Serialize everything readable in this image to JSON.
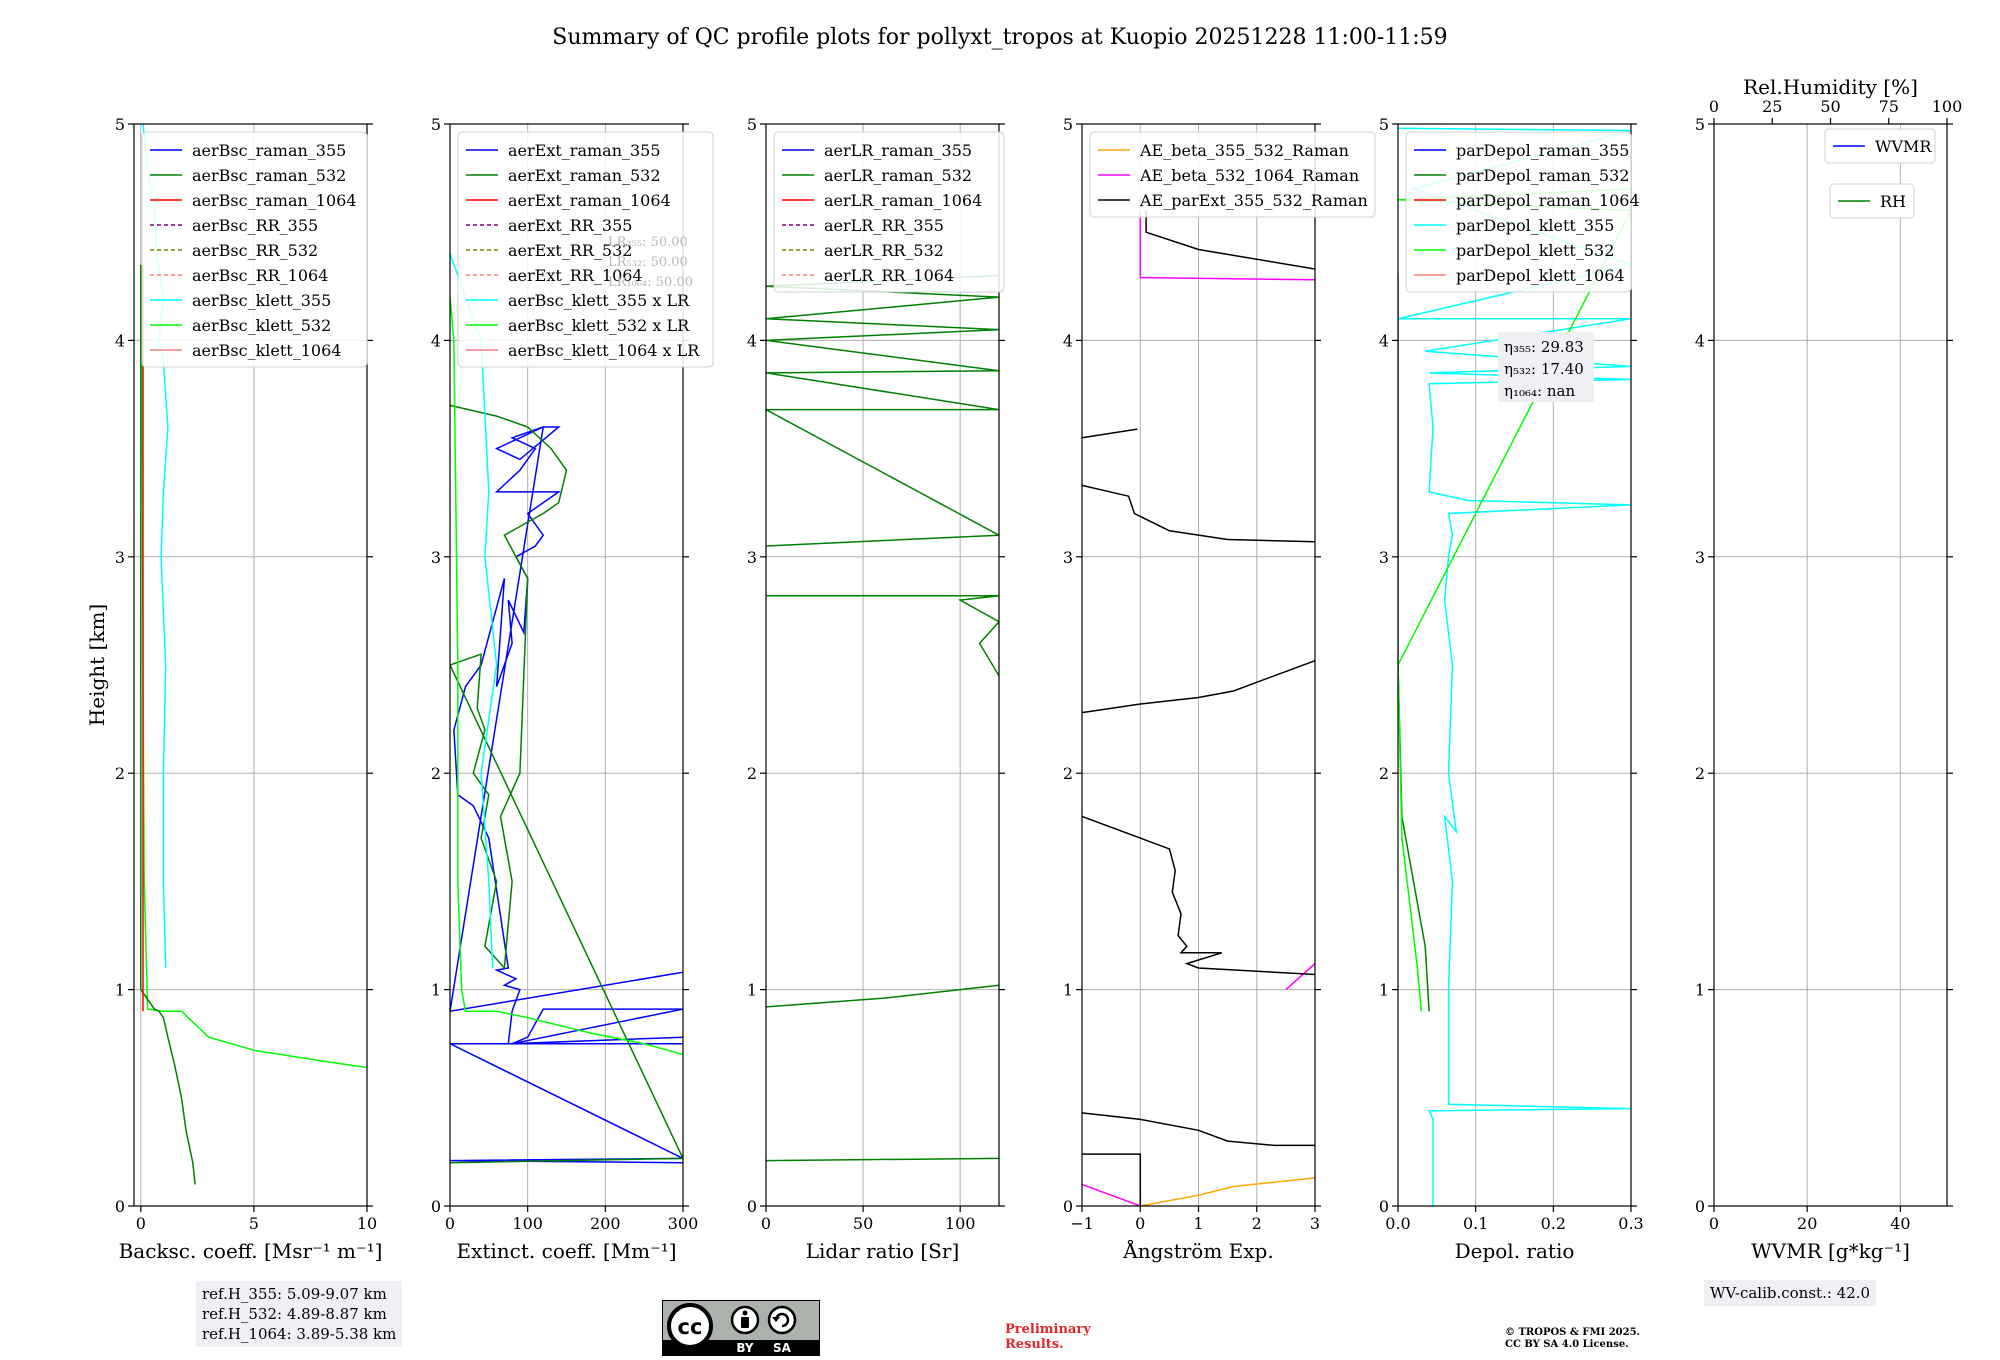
{
  "figure_title": "Summary of QC profile plots for pollyxt_tropos at Kuopio 20251228 11:00-11:59",
  "ref_heights": [
    "ref.H_355: 5.09-9.07 km",
    "ref.H_532: 4.89-8.87 km",
    "ref.H_1064: 3.89-5.38 km"
  ],
  "wv_calib": "WV-calib.const.: 42.0",
  "preliminary": [
    "Preliminary",
    "Results."
  ],
  "copyright": [
    "© TROPOS & FMI 2025.",
    "CC BY SA 4.0 License."
  ],
  "license_badge": {
    "cc": "cc",
    "by": "BY",
    "sa": "SA"
  },
  "colors": {
    "blue": "#0000ff",
    "green": "#008000",
    "red": "#ff0000",
    "purple": "#800080",
    "olive": "#808000",
    "salmon": "#fa8072",
    "cyan": "#00ffff",
    "lime": "#00ff00",
    "lightcoral": "#f08080",
    "orange": "#ffa500",
    "magenta": "#ff00ff",
    "black": "#000000"
  },
  "chart_data": [
    {
      "type": "line",
      "xlabel": "Backsc. coeff. [Msr⁻¹ m⁻¹]",
      "ylabel": "Height [km]",
      "xlim": [
        -0.3,
        10
      ],
      "ylim": [
        0,
        5
      ],
      "xticks": [
        0,
        5,
        10
      ],
      "yticks": [
        0,
        1,
        2,
        3,
        4,
        5
      ],
      "legend": [
        "aerBsc_raman_355",
        "aerBsc_raman_532",
        "aerBsc_raman_1064",
        "aerBsc_RR_355",
        "aerBsc_RR_532",
        "aerBsc_RR_1064",
        "aerBsc_klett_355",
        "aerBsc_klett_532",
        "aerBsc_klett_1064"
      ],
      "legend_colors": [
        "blue",
        "green",
        "red",
        "purple",
        "olive",
        "salmon",
        "cyan",
        "lime",
        "lightcoral"
      ],
      "legend_dashed": [
        false,
        false,
        false,
        true,
        true,
        true,
        false,
        false,
        false
      ],
      "series": [
        {
          "name": "aerBsc_klett_355",
          "color": "cyan",
          "x": [
            1.1,
            1.0,
            1.0,
            1.1,
            0.9,
            1.0,
            1.2,
            1.0,
            0.8,
            1.0,
            0.7,
            0.6,
            0.3,
            0.1
          ],
          "y": [
            1.1,
            1.5,
            2.0,
            2.5,
            3.0,
            3.3,
            3.6,
            3.9,
            4.0,
            4.2,
            4.4,
            4.6,
            4.8,
            5.0
          ]
        },
        {
          "name": "aerBsc_klett_532",
          "color": "lime",
          "x": [
            10.0,
            8.0,
            5.0,
            3.0,
            2.2,
            1.8,
            1.0,
            0.3,
            0.15,
            0.1,
            0.05
          ],
          "y": [
            0.64,
            0.67,
            0.72,
            0.78,
            0.86,
            0.9,
            0.9,
            0.91,
            1.5,
            2.5,
            4.2
          ]
        },
        {
          "name": "aerBsc_raman_532",
          "color": "green",
          "x": [
            2.4,
            2.3,
            2.0,
            1.8,
            1.5,
            1.2,
            1.0,
            0.8,
            0.6,
            0.0,
            0.0
          ],
          "y": [
            0.1,
            0.2,
            0.35,
            0.5,
            0.65,
            0.78,
            0.87,
            0.9,
            0.91,
            1.0,
            4.35
          ]
        },
        {
          "name": "aerBsc_raman_1064",
          "color": "red",
          "x": [
            0.1,
            0.1
          ],
          "y": [
            0.9,
            4.35
          ]
        }
      ],
      "annotation_box": {
        "lines": [
          "ref.H_355: 5.09-9.07 km",
          "ref.H_532: 4.89-8.87 km",
          "ref.H_1064: 3.89-5.38 km"
        ]
      }
    },
    {
      "type": "line",
      "xlabel": "Extinct. coeff. [Mm⁻¹]",
      "xlim": [
        0,
        300
      ],
      "ylim": [
        0,
        5
      ],
      "xticks": [
        0,
        100,
        200,
        300
      ],
      "yticks": [
        0,
        1,
        2,
        3,
        4,
        5
      ],
      "legend": [
        "aerExt_raman_355",
        "aerExt_raman_532",
        "aerExt_raman_1064",
        "aerExt_RR_355",
        "aerExt_RR_532",
        "aerExt_RR_1064",
        "aerBsc_klett_355 x LR",
        "aerBsc_klett_532 x LR",
        "aerBsc_klett_1064 x LR"
      ],
      "legend_colors": [
        "blue",
        "green",
        "red",
        "purple",
        "olive",
        "salmon",
        "cyan",
        "lime",
        "lightcoral"
      ],
      "legend_dashed": [
        false,
        false,
        false,
        true,
        true,
        true,
        false,
        false,
        false
      ],
      "lr_text": [
        "LR₃₅₅: 50.00",
        "LR₅₃₂: 50.00",
        "LR₁₀₆₄: 50.00"
      ],
      "series": [
        {
          "name": "aerExt_raman_355",
          "color": "blue",
          "x": [
            300,
            0,
            300,
            0,
            300,
            80,
            100,
            120,
            300,
            80,
            300,
            75,
            80,
            90,
            70,
            85,
            60,
            75,
            50,
            30,
            10,
            5,
            20,
            40,
            70,
            60,
            80,
            75,
            95,
            100,
            85,
            110,
            120,
            100,
            140,
            60,
            90,
            110,
            80,
            120,
            60,
            90,
            140,
            120,
            0,
            300
          ],
          "y": [
            0.2,
            0.21,
            0.22,
            0.75,
            0.75,
            0.75,
            0.78,
            0.91,
            0.91,
            0.75,
            0.78,
            0.75,
            0.9,
            1.0,
            1.02,
            1.05,
            1.09,
            1.1,
            1.7,
            1.85,
            1.9,
            2.2,
            2.4,
            2.5,
            2.9,
            2.4,
            2.6,
            2.8,
            2.65,
            2.9,
            3.0,
            3.05,
            3.1,
            3.2,
            3.3,
            3.3,
            3.4,
            3.5,
            3.55,
            3.6,
            3.5,
            3.45,
            3.6,
            3.6,
            0.9,
            1.08
          ]
        },
        {
          "name": "aerExt_raman_532",
          "color": "green",
          "x": [
            0,
            300,
            0,
            40,
            35,
            45,
            30,
            50,
            40,
            60,
            45,
            70,
            80,
            65,
            90,
            100,
            70,
            120,
            140,
            150,
            130,
            100,
            60,
            0
          ],
          "y": [
            0.2,
            0.22,
            2.5,
            2.55,
            2.3,
            2.2,
            2.0,
            1.9,
            1.7,
            1.5,
            1.2,
            1.1,
            1.5,
            1.8,
            2.0,
            2.9,
            3.1,
            3.2,
            3.25,
            3.4,
            3.5,
            3.6,
            3.65,
            3.7
          ]
        },
        {
          "name": "aerBsc_klett_355 x LR",
          "color": "cyan",
          "x": [
            55,
            50,
            40,
            60,
            45,
            50,
            40,
            0
          ],
          "y": [
            1.1,
            1.5,
            2.0,
            2.5,
            3.0,
            3.3,
            4.0,
            4.4
          ]
        },
        {
          "name": "aerBsc_klett_532 x LR",
          "color": "lime",
          "x": [
            300,
            250,
            180,
            100,
            60,
            20,
            15,
            10,
            10,
            5,
            0
          ],
          "y": [
            0.7,
            0.75,
            0.8,
            0.87,
            0.9,
            0.9,
            1.0,
            1.5,
            2.5,
            4.0,
            4.2
          ]
        }
      ]
    },
    {
      "type": "line",
      "xlabel": "Lidar ratio [Sr]",
      "xlim": [
        0,
        120
      ],
      "ylim": [
        0,
        5
      ],
      "xticks": [
        0,
        50,
        100
      ],
      "yticks": [
        0,
        1,
        2,
        3,
        4,
        5
      ],
      "legend": [
        "aerLR_raman_355",
        "aerLR_raman_532",
        "aerLR_raman_1064",
        "aerLR_RR_355",
        "aerLR_RR_532",
        "aerLR_RR_1064"
      ],
      "legend_colors": [
        "blue",
        "green",
        "red",
        "purple",
        "olive",
        "salmon"
      ],
      "legend_dashed": [
        false,
        false,
        false,
        true,
        true,
        true
      ],
      "series": [
        {
          "name": "aerLR_raman_532",
          "color": "green",
          "x": [
            0,
            120
          ],
          "y": [
            0.21,
            0.22
          ]
        },
        {
          "name": "aerLR_raman_532",
          "color": "green",
          "x": [
            0,
            60,
            100,
            120
          ],
          "y": [
            0.92,
            0.96,
            1.0,
            1.02
          ]
        },
        {
          "name": "aerLR_raman_532",
          "color": "green",
          "x": [
            120,
            110,
            120,
            100,
            120,
            0
          ],
          "y": [
            2.45,
            2.6,
            2.7,
            2.8,
            2.82,
            2.82
          ]
        },
        {
          "name": "aerLR_raman_532",
          "color": "green",
          "x": [
            0,
            120,
            0,
            120,
            0,
            120,
            0,
            120,
            0,
            120,
            0,
            120
          ],
          "y": [
            3.05,
            3.1,
            3.68,
            3.68,
            3.85,
            3.86,
            4.0,
            4.05,
            4.1,
            4.2,
            4.25,
            4.3
          ]
        }
      ]
    },
    {
      "type": "line",
      "xlabel": "Ångström Exp.",
      "xlim": [
        -1,
        3
      ],
      "ylim": [
        0,
        5
      ],
      "xticks": [
        -1,
        0,
        1,
        2,
        3
      ],
      "yticks": [
        0,
        1,
        2,
        3,
        4,
        5
      ],
      "legend": [
        "AE_beta_355_532_Raman",
        "AE_beta_532_1064_Raman",
        "AE_parExt_355_532_Raman"
      ],
      "legend_colors": [
        "orange",
        "magenta",
        "black"
      ],
      "legend_dashed": [
        false,
        false,
        false
      ],
      "series": [
        {
          "name": "AE_beta_355_532_Raman",
          "color": "orange",
          "x": [
            0,
            1.0,
            1.6,
            2.3,
            3.0
          ],
          "y": [
            0,
            0.05,
            0.09,
            0.11,
            0.13
          ]
        },
        {
          "name": "AE_beta_532_1064_Raman",
          "color": "magenta",
          "x": [
            -1,
            -0.5,
            0
          ],
          "y": [
            0.1,
            0.05,
            0.0
          ]
        },
        {
          "name": "AE_beta_532_1064_Raman",
          "color": "magenta",
          "x": [
            2.5,
            3.0
          ],
          "y": [
            1.0,
            1.12
          ]
        },
        {
          "name": "AE_beta_532_1064_Raman",
          "color": "magenta",
          "x": [
            0,
            0,
            3.0
          ],
          "y": [
            4.6,
            4.29,
            4.28
          ]
        },
        {
          "name": "AE_parExt_355_532_Raman",
          "color": "black",
          "x": [
            -1,
            0,
            0
          ],
          "y": [
            0.24,
            0.24,
            0
          ]
        },
        {
          "name": "AE_parExt_355_532_Raman",
          "color": "black",
          "x": [
            -1,
            0,
            1,
            1.5,
            2.3,
            3.0
          ],
          "y": [
            0.43,
            0.4,
            0.35,
            0.3,
            0.28,
            0.28
          ]
        },
        {
          "name": "AE_parExt_355_532_Raman",
          "color": "black",
          "x": [
            -1,
            0.5,
            0.6,
            0.55,
            0.7,
            0.65,
            0.8,
            0.7,
            1.4,
            0.8,
            1.0,
            3.0
          ],
          "y": [
            1.8,
            1.65,
            1.55,
            1.45,
            1.35,
            1.25,
            1.2,
            1.17,
            1.17,
            1.12,
            1.1,
            1.07
          ]
        },
        {
          "name": "AE_parExt_355_532_Raman",
          "color": "black",
          "x": [
            -1,
            0,
            1.0,
            1.6,
            2.3,
            3.0
          ],
          "y": [
            2.28,
            2.32,
            2.35,
            2.38,
            2.45,
            2.52
          ]
        },
        {
          "name": "AE_parExt_355_532_Raman",
          "color": "black",
          "x": [
            -1,
            -0.2,
            -0.1,
            0.5,
            1.5,
            3.0
          ],
          "y": [
            3.33,
            3.28,
            3.2,
            3.12,
            3.08,
            3.07
          ]
        },
        {
          "name": "AE_parExt_355_532_Raman",
          "color": "black",
          "x": [
            -1,
            -0.05
          ],
          "y": [
            3.55,
            3.59
          ]
        },
        {
          "name": "AE_parExt_355_532_Raman",
          "color": "black",
          "x": [
            0.1,
            0.1,
            1.0,
            3.0
          ],
          "y": [
            4.6,
            4.5,
            4.42,
            4.33
          ]
        }
      ]
    },
    {
      "type": "line",
      "xlabel": "Depol. ratio",
      "xlim": [
        0,
        0.3
      ],
      "ylim": [
        0,
        5
      ],
      "xticks": [
        0.0,
        0.1,
        0.2,
        0.3
      ],
      "yticks": [
        0,
        1,
        2,
        3,
        4,
        5
      ],
      "legend": [
        "parDepol_raman_355",
        "parDepol_raman_532",
        "parDepol_raman_1064",
        "parDepol_klett_355",
        "parDepol_klett_532",
        "parDepol_klett_1064"
      ],
      "legend_colors": [
        "blue",
        "green",
        "red",
        "cyan",
        "lime",
        "salmon"
      ],
      "legend_dashed": [
        false,
        false,
        false,
        false,
        false,
        false
      ],
      "eta_text": [
        "η₃₅₅: 29.83",
        "η₅₃₂: 17.40",
        "η₁₀₆₄: nan"
      ],
      "series": [
        {
          "name": "parDepol_klett_355",
          "color": "cyan",
          "x": [
            0.045,
            0.045,
            0.04,
            0.3,
            0.065,
            0.065,
            0.07,
            0.06,
            0.075,
            0.065,
            0.07,
            0.06,
            0.065,
            0.07,
            0.065,
            0.3,
            0.09,
            0.04,
            0.045,
            0.04,
            0.3,
            0.04,
            0.3,
            0.035,
            0.3,
            0.0,
            0.3,
            0.02,
            0.3,
            0.0
          ],
          "y": [
            0.0,
            0.4,
            0.44,
            0.45,
            0.47,
            1.0,
            1.5,
            1.8,
            1.73,
            2.0,
            2.5,
            2.8,
            3.0,
            3.1,
            3.2,
            3.24,
            3.26,
            3.3,
            3.6,
            3.8,
            3.82,
            3.85,
            3.88,
            3.95,
            4.1,
            4.1,
            4.35,
            4.7,
            4.97,
            4.98
          ]
        },
        {
          "name": "parDepol_raman_532",
          "color": "green",
          "x": [
            0.04,
            0.035,
            0.02,
            0.005,
            0.0,
            0.0
          ],
          "y": [
            0.9,
            1.2,
            1.5,
            1.8,
            2.5,
            4.3
          ]
        },
        {
          "name": "parDepol_klett_532",
          "color": "lime",
          "x": [
            0.03,
            0.025,
            0.015,
            0.005,
            0.0,
            0.3,
            0.0,
            0.3
          ],
          "y": [
            0.9,
            1.1,
            1.4,
            1.7,
            2.5,
            4.6,
            4.65,
            4.7
          ]
        }
      ]
    },
    {
      "type": "line",
      "xlabel": "WVMR [g*kg⁻¹]",
      "top_xlabel": "Rel.Humidity [%]",
      "xlim": [
        0,
        50
      ],
      "ylim": [
        0,
        5
      ],
      "xticks": [
        0,
        20,
        40
      ],
      "top_xticks": [
        0,
        25,
        50,
        75,
        100
      ],
      "yticks": [
        0,
        1,
        2,
        3,
        4,
        5
      ],
      "legend": [
        "WVMR",
        "RH"
      ],
      "legend_colors": [
        "blue",
        "green"
      ],
      "series": []
    }
  ]
}
